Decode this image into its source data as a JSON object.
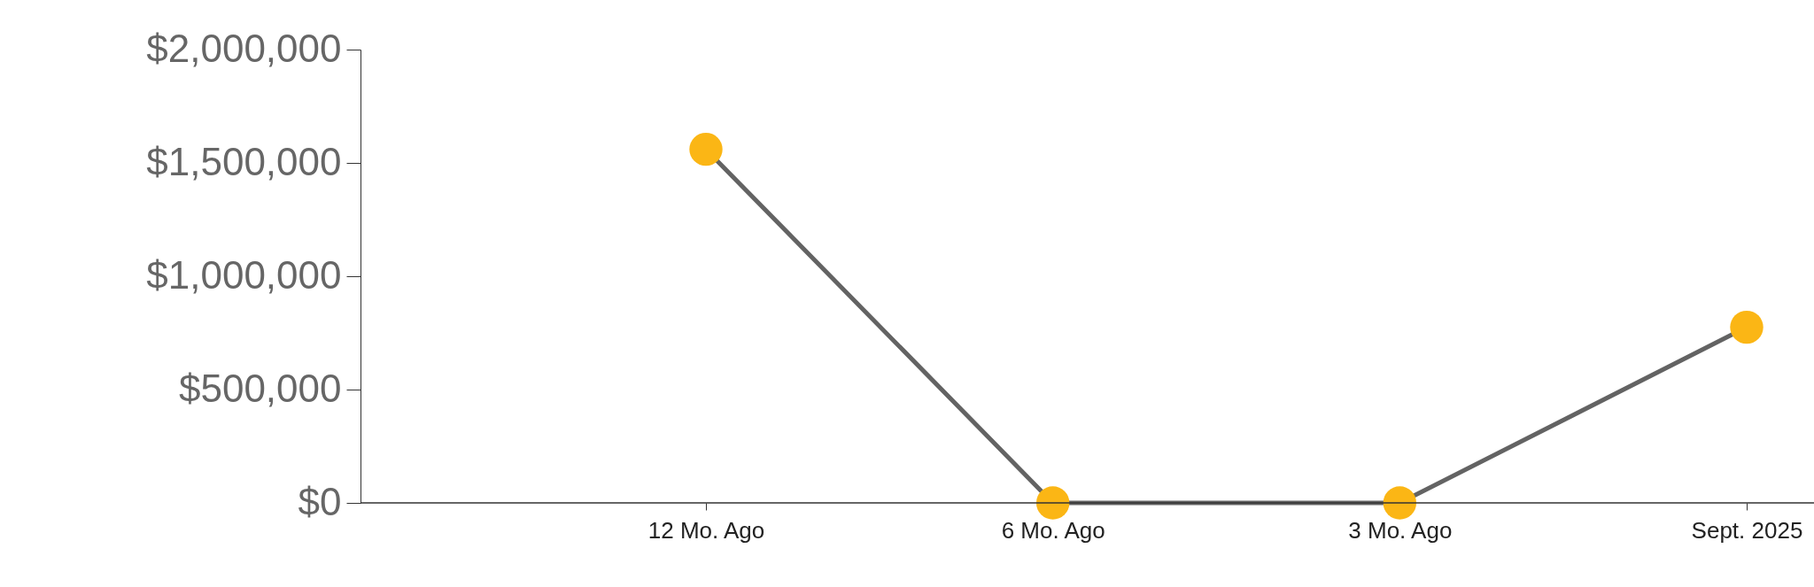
{
  "chart_data": {
    "type": "line",
    "categories": [
      "12 Mo. Ago",
      "6 Mo. Ago",
      "3 Mo. Ago",
      "Sept. 2025"
    ],
    "series": [
      {
        "color": "#636363",
        "colors": [
          "#fbb615",
          "#fbb615",
          "#fbb615",
          "#fbb615"
        ],
        "values": [
          1560000,
          0,
          0,
          775000
        ]
      }
    ],
    "marker": "circle",
    "line_style": "solid",
    "grid": false,
    "ylim": [
      0,
      2000000
    ],
    "yticks": [
      {
        "value": 0,
        "label": "$0"
      },
      {
        "value": 500000,
        "label": "$500,000"
      },
      {
        "value": 1000000,
        "label": "$1,000,000"
      },
      {
        "value": 1500000,
        "label": "$1,500,000"
      },
      {
        "value": 2000000,
        "label": "$2,000,000"
      }
    ]
  }
}
